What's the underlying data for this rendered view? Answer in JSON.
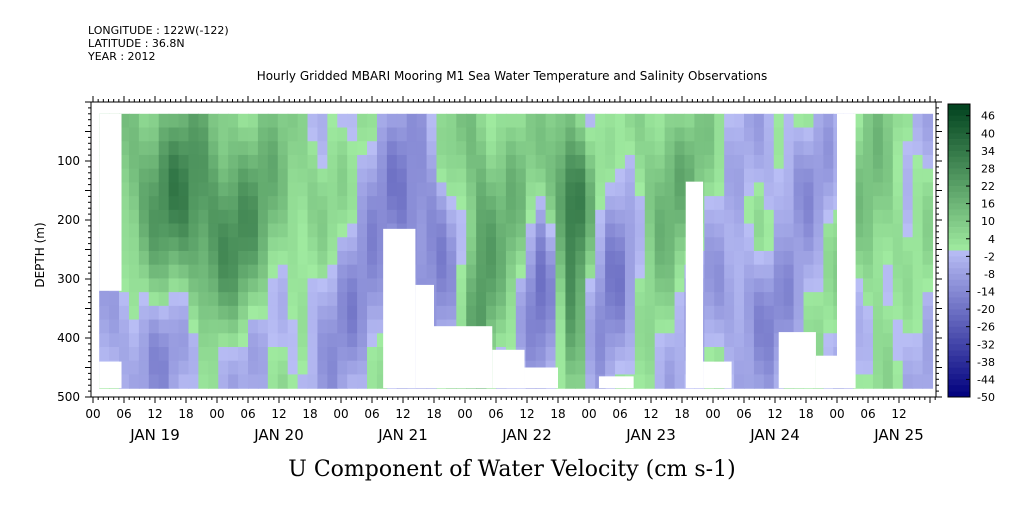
{
  "header": {
    "longitude": "LONGITUDE : 122W(-122)",
    "latitude": "LATITUDE : 36.8N",
    "year": "YEAR : 2012"
  },
  "chart_data": {
    "type": "heatmap",
    "title": "Hourly Gridded MBARI Mooring M1 Sea Water Temperature and Salinity Observations",
    "bottom_title": "U Component of Water Velocity (cm s-1)",
    "ylabel": "DEPTH (m)",
    "ylim": [
      500,
      0
    ],
    "y_ticks": [
      100,
      200,
      300,
      400,
      500
    ],
    "x_range_days": [
      0,
      7
    ],
    "hour_ticks": [
      "00",
      "06",
      "12",
      "18",
      "00",
      "06",
      "12",
      "18",
      "00",
      "06",
      "12",
      "18",
      "00",
      "06",
      "12",
      "18",
      "00",
      "06",
      "12",
      "18",
      "00",
      "06",
      "12",
      "18",
      "00",
      "06",
      "12"
    ],
    "day_labels": [
      "JAN 19",
      "JAN 20",
      "JAN 21",
      "JAN 22",
      "JAN 23",
      "JAN 24",
      "JAN 25"
    ],
    "colorbar": {
      "min": -50,
      "max": 50,
      "step": 2,
      "labels": [
        "46",
        "40",
        "34",
        "28",
        "22",
        "16",
        "10",
        "4",
        "-2",
        "-8",
        "-14",
        "-20",
        "-26",
        "-32",
        "-38",
        "-44",
        "-50"
      ]
    },
    "data_depth_range": [
      20,
      485
    ],
    "missing_regions": [
      {
        "t_start": 0.05,
        "t_end": 0.23,
        "d_start": 20,
        "d_end": 320
      },
      {
        "t_start": 0.05,
        "t_end": 0.23,
        "d_start": 440,
        "d_end": 485
      },
      {
        "t_start": 2.34,
        "t_end": 2.6,
        "d_start": 215,
        "d_end": 485
      },
      {
        "t_start": 2.6,
        "t_end": 2.75,
        "d_start": 310,
        "d_end": 485
      },
      {
        "t_start": 2.75,
        "t_end": 3.22,
        "d_start": 380,
        "d_end": 485
      },
      {
        "t_start": 3.22,
        "t_end": 3.48,
        "d_start": 420,
        "d_end": 485
      },
      {
        "t_start": 3.48,
        "t_end": 3.75,
        "d_start": 450,
        "d_end": 485
      },
      {
        "t_start": 4.08,
        "t_end": 4.36,
        "d_start": 465,
        "d_end": 485
      },
      {
        "t_start": 4.78,
        "t_end": 4.92,
        "d_start": 135,
        "d_end": 485
      },
      {
        "t_start": 4.92,
        "t_end": 5.15,
        "d_start": 440,
        "d_end": 485
      },
      {
        "t_start": 5.53,
        "t_end": 5.83,
        "d_start": 390,
        "d_end": 485
      },
      {
        "t_start": 5.83,
        "t_end": 6.0,
        "d_start": 430,
        "d_end": 485
      },
      {
        "t_start": 6.0,
        "t_end": 6.15,
        "d_start": 20,
        "d_end": 485
      }
    ],
    "anomalies": [
      {
        "t": 0.55,
        "d": 120,
        "value": 20,
        "dt": 0.5,
        "dd": 150
      },
      {
        "t": 0.9,
        "d": 250,
        "value": 16,
        "dt": 0.4,
        "dd": 160
      },
      {
        "t": 1.25,
        "d": 200,
        "value": 12,
        "dt": 0.35,
        "dd": 200
      },
      {
        "t": 0.35,
        "d": 400,
        "value": -10,
        "dt": 0.35,
        "dd": 120
      },
      {
        "t": 0.95,
        "d": 420,
        "value": -8,
        "dt": 0.5,
        "dd": 100
      },
      {
        "t": 1.75,
        "d": 150,
        "value": 10,
        "dt": 0.3,
        "dd": 130
      },
      {
        "t": 2.0,
        "d": 350,
        "value": -10,
        "dt": 0.45,
        "dd": 150
      },
      {
        "t": 2.3,
        "d": 120,
        "value": -6,
        "dt": 0.35,
        "dd": 130
      },
      {
        "t": 2.7,
        "d": 200,
        "value": -18,
        "dt": 0.3,
        "dd": 150
      },
      {
        "t": 3.0,
        "d": 120,
        "value": 14,
        "dt": 0.22,
        "dd": 140
      },
      {
        "t": 3.12,
        "d": 320,
        "value": 18,
        "dt": 0.12,
        "dd": 230
      },
      {
        "t": 3.38,
        "d": 220,
        "value": 12,
        "dt": 0.2,
        "dd": 200
      },
      {
        "t": 3.62,
        "d": 350,
        "value": -22,
        "dt": 0.15,
        "dd": 180
      },
      {
        "t": 3.85,
        "d": 150,
        "value": 34,
        "dt": 0.2,
        "dd": 130
      },
      {
        "t": 3.88,
        "d": 380,
        "value": 20,
        "dt": 0.1,
        "dd": 200
      },
      {
        "t": 4.2,
        "d": 250,
        "value": -16,
        "dt": 0.25,
        "dd": 200
      },
      {
        "t": 4.5,
        "d": 180,
        "value": 14,
        "dt": 0.25,
        "dd": 160
      },
      {
        "t": 4.75,
        "d": 100,
        "value": 10,
        "dt": 0.25,
        "dd": 120
      },
      {
        "t": 5.4,
        "d": 230,
        "value": 6,
        "dt": 0.4,
        "dd": 90
      },
      {
        "t": 5.3,
        "d": 330,
        "value": -14,
        "dt": 0.4,
        "dd": 130
      },
      {
        "t": 5.65,
        "d": 140,
        "value": -10,
        "dt": 0.3,
        "dd": 120
      },
      {
        "t": 6.35,
        "d": 200,
        "value": 12,
        "dt": 0.25,
        "dd": 220
      },
      {
        "t": 6.55,
        "d": 380,
        "value": -8,
        "dt": 0.2,
        "dd": 150
      }
    ]
  }
}
